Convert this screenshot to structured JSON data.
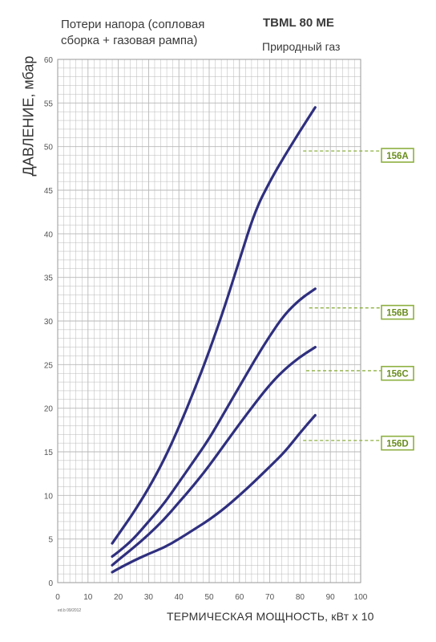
{
  "header": {
    "subtitle_line1": "Потери напора (сопловая",
    "subtitle_line2": "сборка + газовая рампа)",
    "model": "TBML 80 ME",
    "fuel": "Природный газ"
  },
  "edition": "ed.b 09/2012",
  "colors": {
    "curve": "#2f2f7f",
    "grid": "#b8b8b8",
    "callout": "#8db040",
    "callout_text": "#6a8d1e",
    "axis_text": "#555555"
  },
  "chart_data": {
    "type": "line",
    "xlabel": "ТЕРМИЧЕСКАЯ МОЩНОСТЬ, кВт х 10",
    "ylabel": "ДАВЛЕНИЕ, мбар",
    "xlim": [
      0,
      100
    ],
    "ylim": [
      0,
      60
    ],
    "xticks": [
      0,
      10,
      20,
      30,
      40,
      50,
      60,
      70,
      80,
      90,
      100
    ],
    "yticks": [
      0,
      5,
      10,
      15,
      20,
      25,
      30,
      35,
      40,
      45,
      50,
      55,
      60
    ],
    "grid": true,
    "series": [
      {
        "name": "156A",
        "x": [
          18,
          20,
          25,
          30,
          35,
          40,
          45,
          50,
          55,
          60,
          65,
          70,
          75,
          80,
          85
        ],
        "y": [
          4.5,
          5.5,
          8.0,
          10.8,
          14.0,
          17.8,
          22.0,
          26.5,
          31.5,
          37.0,
          42.5,
          46.0,
          49.0,
          51.8,
          54.5
        ]
      },
      {
        "name": "156B",
        "x": [
          18,
          20,
          25,
          30,
          35,
          40,
          45,
          50,
          55,
          60,
          65,
          70,
          75,
          80,
          85
        ],
        "y": [
          3.0,
          3.5,
          5.0,
          7.0,
          9.0,
          11.5,
          14.0,
          16.5,
          19.5,
          22.5,
          25.5,
          28.3,
          30.8,
          32.5,
          33.7
        ]
      },
      {
        "name": "156C",
        "x": [
          18,
          20,
          25,
          30,
          35,
          40,
          45,
          50,
          55,
          60,
          65,
          70,
          75,
          80,
          85
        ],
        "y": [
          2.0,
          2.6,
          4.0,
          5.5,
          7.2,
          9.2,
          11.2,
          13.4,
          15.8,
          18.2,
          20.5,
          22.7,
          24.5,
          25.9,
          27.0
        ]
      },
      {
        "name": "156D",
        "x": [
          18,
          20,
          25,
          30,
          35,
          40,
          45,
          50,
          55,
          60,
          65,
          70,
          75,
          80,
          85
        ],
        "y": [
          1.2,
          1.6,
          2.5,
          3.3,
          4.0,
          5.0,
          6.1,
          7.2,
          8.5,
          10.0,
          11.6,
          13.3,
          15.0,
          17.2,
          19.2
        ]
      }
    ],
    "callouts": [
      {
        "label": "156A",
        "from_x": 81,
        "y": 49.5,
        "label_y": 49.0
      },
      {
        "label": "156B",
        "from_x": 83,
        "y": 31.5,
        "label_y": 31.0
      },
      {
        "label": "156C",
        "from_x": 82,
        "y": 24.3,
        "label_y": 24.0
      },
      {
        "label": "156D",
        "from_x": 81,
        "y": 16.3,
        "label_y": 16.0
      }
    ]
  }
}
